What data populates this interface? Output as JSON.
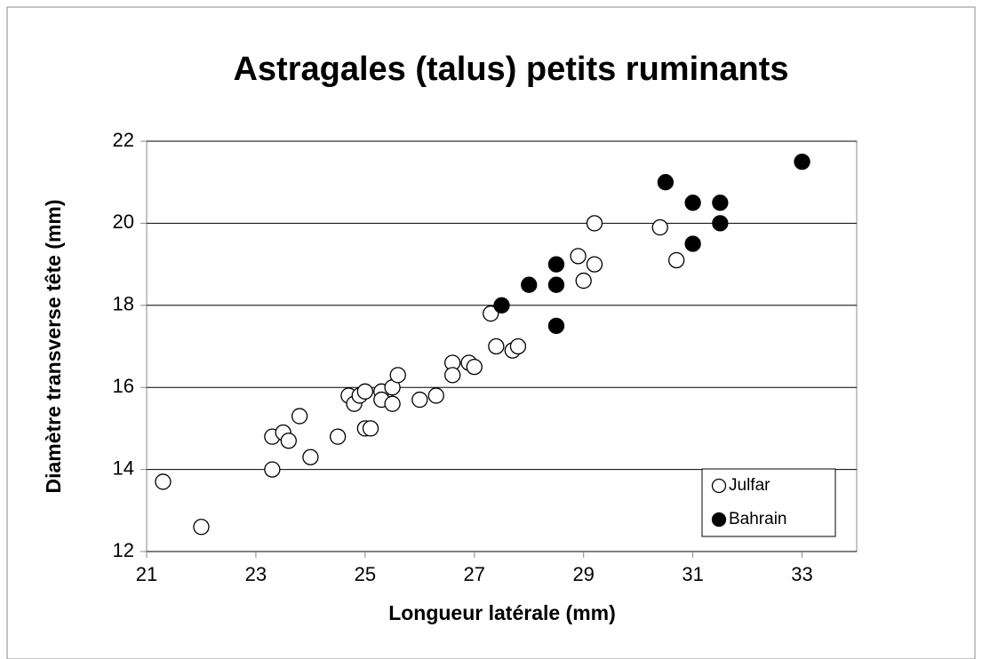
{
  "chart_data": {
    "type": "scatter",
    "title": "Astragales (talus) petits ruminants",
    "xlabel": "Longueur latérale (mm)",
    "ylabel": "Diamètre transverse tête (mm)",
    "xlim": [
      21,
      34
    ],
    "xticks": [
      21,
      23,
      25,
      27,
      29,
      31,
      33
    ],
    "ylim": [
      12,
      22
    ],
    "yticks": [
      12,
      14,
      16,
      18,
      20,
      22
    ],
    "grid": true,
    "legend": "lower right",
    "series": [
      {
        "name": "Julfar",
        "color": "#ffffff",
        "edgecolor": "#000000",
        "x": [
          21.3,
          22,
          23.3,
          23.3,
          23.5,
          23.6,
          23.8,
          24,
          24.5,
          24.7,
          24.8,
          24.9,
          25,
          25,
          25.1,
          25.3,
          25.3,
          25.5,
          25.5,
          25.6,
          26,
          26.3,
          26.6,
          26.6,
          26.9,
          27,
          27.3,
          27.4,
          27.7,
          27.8,
          28.9,
          29,
          29.2,
          29.2,
          30.4,
          30.7
        ],
        "values": [
          13.7,
          12.6,
          14.8,
          14.0,
          14.9,
          14.7,
          15.3,
          14.3,
          14.8,
          15.8,
          15.6,
          15.8,
          15.9,
          15.0,
          15.0,
          15.9,
          15.7,
          16.0,
          15.6,
          16.3,
          15.7,
          15.8,
          16.6,
          16.3,
          16.6,
          16.5,
          17.8,
          17.0,
          16.9,
          17.0,
          19.2,
          18.6,
          19.0,
          20.0,
          19.9,
          19.1
        ]
      },
      {
        "name": "Bahrain",
        "color": "#000000",
        "edgecolor": "#000000",
        "x": [
          27.5,
          28,
          28.5,
          28.5,
          28.5,
          30.5,
          31,
          31,
          31.5,
          31.5,
          33
        ],
        "values": [
          18.0,
          18.5,
          19.0,
          18.5,
          17.5,
          21.0,
          20.5,
          19.5,
          20.5,
          20.0,
          21.5
        ]
      }
    ]
  }
}
